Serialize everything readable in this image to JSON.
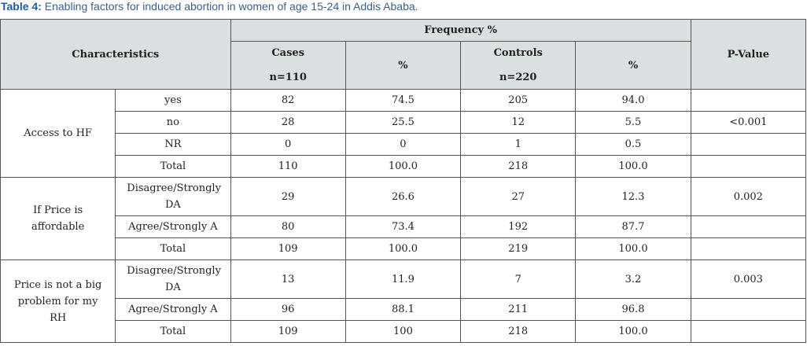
{
  "caption": {
    "label": "Table 4:",
    "text": "Enabling factors for induced abortion in women of age 15-24 in Addis Ababa."
  },
  "table": {
    "header": {
      "characteristics": "Characteristics",
      "frequency": "Frequency %",
      "p_value": "P-Value",
      "cases": "Cases",
      "cases_n": "n=110",
      "cases_pct": "%",
      "controls": "Controls",
      "controls_n": "n=220",
      "controls_pct": "%"
    },
    "groups": [
      {
        "label": "Access to HF",
        "rows": [
          {
            "sub": "yes",
            "cells": [
              "82",
              "74.5",
              "205",
              "94.0"
            ]
          },
          {
            "sub": "no",
            "cells": [
              "28",
              "25.5",
              "12",
              "5.5"
            ],
            "p": "<0.001"
          },
          {
            "sub": "NR",
            "cells": [
              "0",
              "0",
              "1",
              "0.5"
            ]
          },
          {
            "sub": "Total",
            "cells": [
              "110",
              "100.0",
              "218",
              "100.0"
            ]
          }
        ]
      },
      {
        "label": "If Price is affordable",
        "rows": [
          {
            "sub": "Disagree/Strongly DA",
            "cells": [
              "29",
              "26.6",
              "27",
              "12.3"
            ],
            "p": "0.002"
          },
          {
            "sub": "Agree/Strongly A",
            "cells": [
              "80",
              "73.4",
              "192",
              "87.7"
            ]
          },
          {
            "sub": "Total",
            "cells": [
              "109",
              "100.0",
              "219",
              "100.0"
            ]
          }
        ]
      },
      {
        "label": "Price is not a big problem for my RH",
        "rows": [
          {
            "sub": "Disagree/Strongly DA",
            "cells": [
              "13",
              "11.9",
              "7",
              "3.2"
            ],
            "p": "0.003"
          },
          {
            "sub": "Agree/Strongly A",
            "cells": [
              "96",
              "88.1",
              "211",
              "96.8"
            ]
          },
          {
            "sub": "Total",
            "cells": [
              "109",
              "100",
              "218",
              "100.0"
            ]
          }
        ]
      }
    ]
  }
}
